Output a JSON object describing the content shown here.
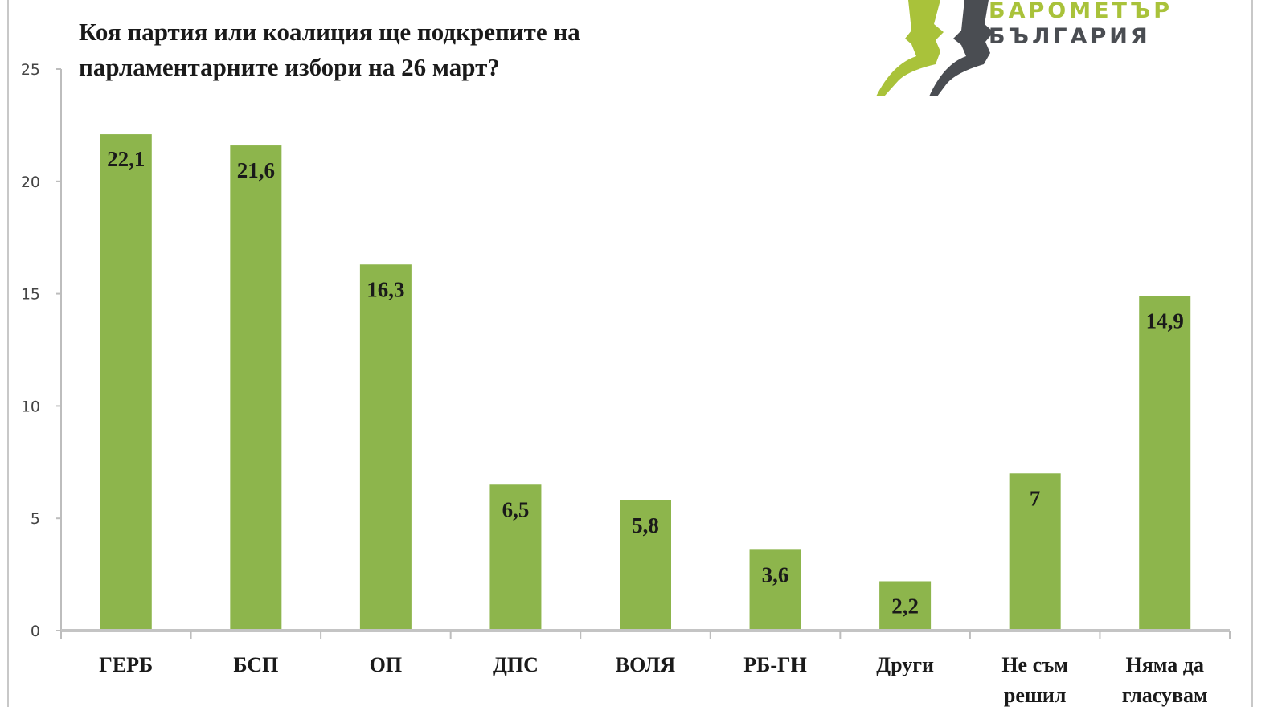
{
  "logo": {
    "line1": "БАРОМЕТЪР",
    "line2": "БЪЛГАРИЯ"
  },
  "chart_data": {
    "type": "bar",
    "title_lines": [
      "Коя партия или коалиция ще подкрепите на",
      "парламентарните избори на 26 март?"
    ],
    "categories": [
      [
        "ГЕРБ"
      ],
      [
        "БСП"
      ],
      [
        "ОП"
      ],
      [
        "ДПС"
      ],
      [
        "ВОЛЯ"
      ],
      [
        "РБ-ГН"
      ],
      [
        "Други"
      ],
      [
        "Не съм",
        "решил"
      ],
      [
        "Няма да",
        "гласувам"
      ]
    ],
    "values": [
      22.1,
      21.6,
      16.3,
      6.5,
      5.8,
      3.6,
      2.2,
      7,
      14.9
    ],
    "value_labels": [
      "22,1",
      "21,6",
      "16,3",
      "6,5",
      "5,8",
      "3,6",
      "2,2",
      "7",
      "14,9"
    ],
    "yticks": [
      0,
      5,
      10,
      15,
      20,
      25
    ],
    "ylim": [
      0,
      25
    ],
    "xlabel": "",
    "ylabel": "",
    "bar_color": "#8db54c",
    "grid": false
  }
}
